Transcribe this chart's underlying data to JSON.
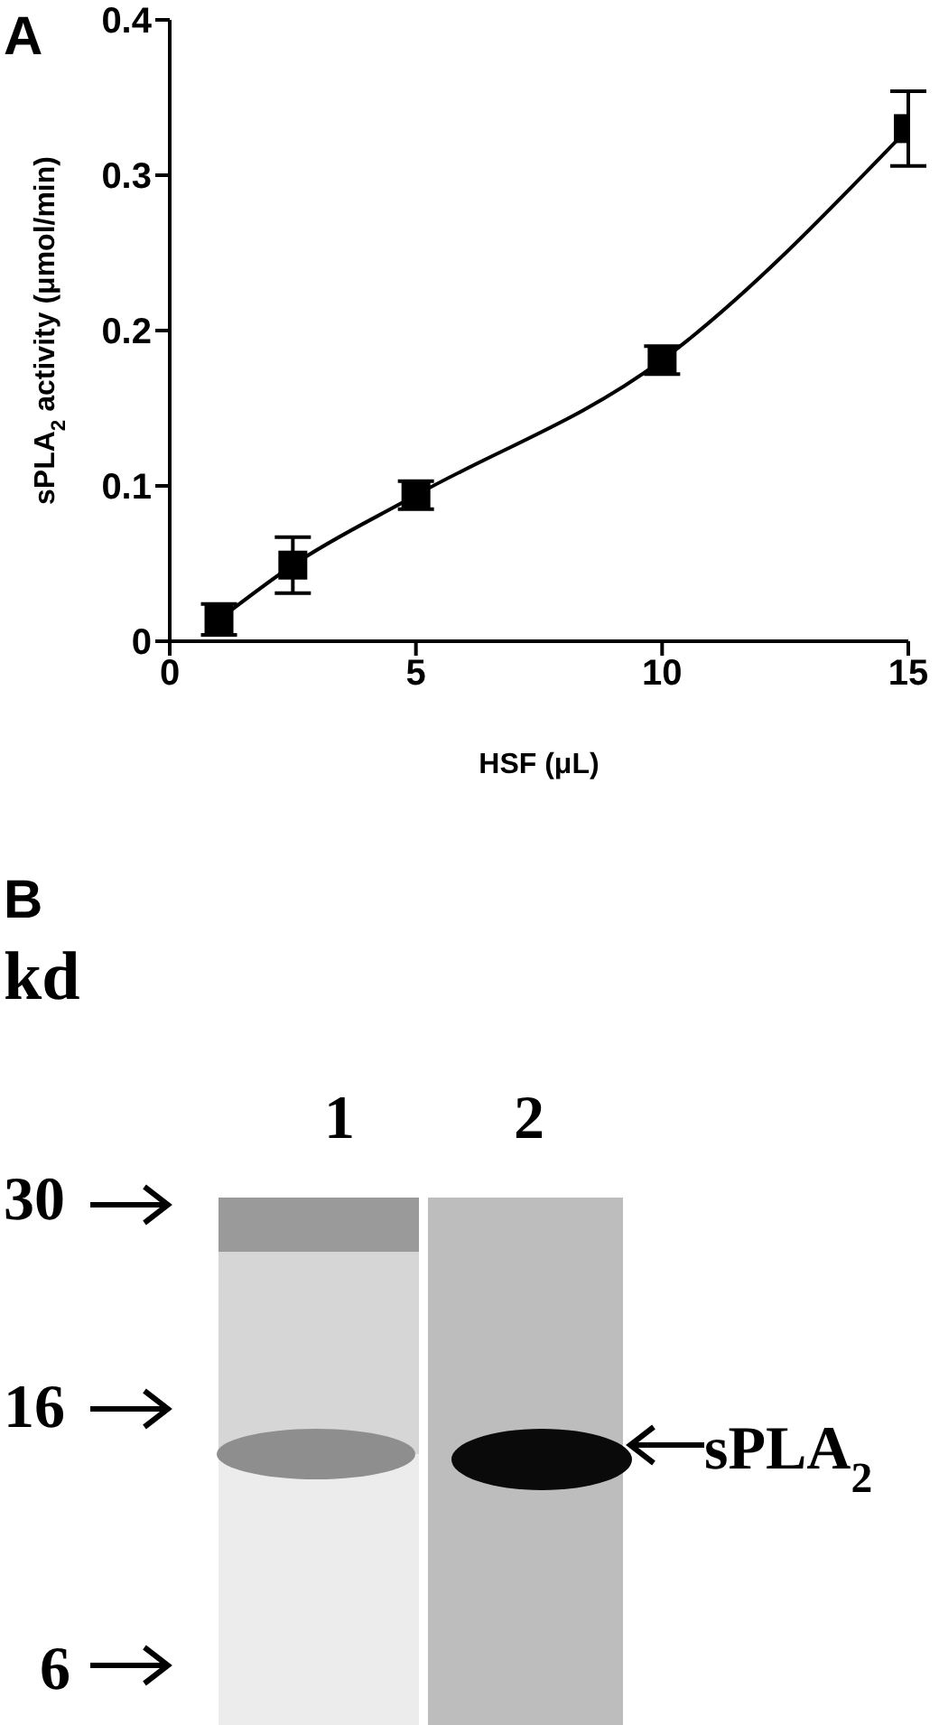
{
  "chart_data": [
    {
      "type": "line",
      "title": "A",
      "xlabel": "HSF (μL)",
      "ylabel": "sPLA$_{2}$ activity (μmol/min)",
      "x": [
        1,
        2.5,
        5,
        10,
        15
      ],
      "series": [
        {
          "color": "#000000",
          "values": [
            0.014,
            0.049,
            0.094,
            0.181,
            0.33
          ],
          "errors": [
            0.01,
            0.018,
            0.009,
            0.009,
            0.024
          ]
        }
      ],
      "xlim": [
        0,
        15
      ],
      "xticks": [
        0,
        5,
        10,
        15
      ],
      "ylim": [
        0,
        0.4
      ],
      "yticks": [
        0,
        0.1,
        0.2,
        0.3,
        0.4
      ],
      "marker": "square",
      "line_style": "solid",
      "grid": false,
      "legend": false
    },
    {
      "type": "other",
      "title": "B",
      "annotations": [
        "kd",
        "1",
        "2",
        "30",
        "16",
        "6",
        "sPLA$_{2}$"
      ]
    }
  ]
}
